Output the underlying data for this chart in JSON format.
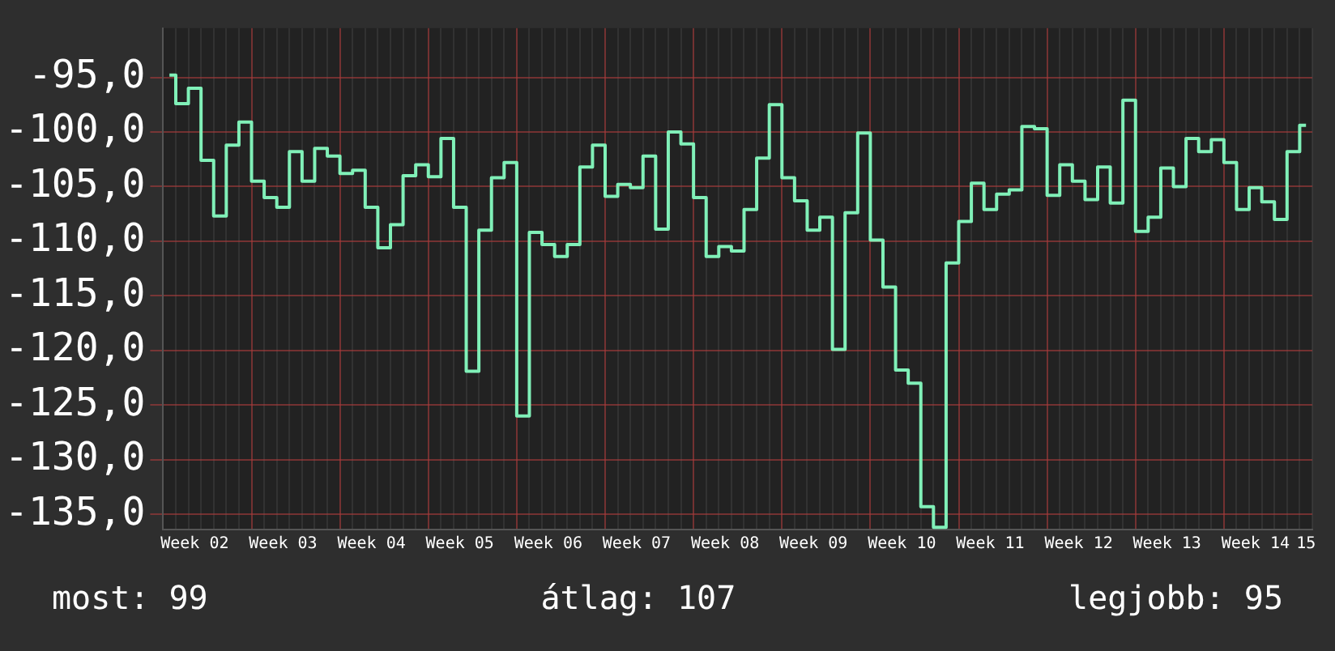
{
  "chart_data": {
    "type": "step",
    "categories": [
      null,
      null,
      "Week 02",
      null,
      null,
      null,
      null,
      null,
      null,
      "Week 03",
      null,
      null,
      null,
      null,
      null,
      null,
      "Week 04",
      null,
      null,
      null,
      null,
      null,
      null,
      "Week 05",
      null,
      null,
      null,
      null,
      null,
      null,
      "Week 06",
      null,
      null,
      null,
      null,
      null,
      null,
      "Week 07",
      null,
      null,
      null,
      null,
      null,
      null,
      "Week 08",
      null,
      null,
      null,
      null,
      null,
      null,
      "Week 09",
      null,
      null,
      null,
      null,
      null,
      null,
      "Week 10",
      null,
      null,
      null,
      null,
      null,
      null,
      "Week 11",
      null,
      null,
      null,
      null,
      null,
      null,
      "Week 12",
      null,
      null,
      null,
      null,
      null,
      null,
      "Week 13",
      null,
      null,
      null,
      null,
      null,
      null,
      "Week 14",
      null,
      null,
      null,
      "15"
    ],
    "series": [
      {
        "color": "#80f0b8",
        "values": [
          -94.8,
          -97.4,
          -96.0,
          -102.6,
          -107.7,
          -101.2,
          -99.1,
          -104.5,
          -106.0,
          -106.9,
          -101.8,
          -104.5,
          -101.5,
          -102.2,
          -103.8,
          -103.5,
          -106.9,
          -110.6,
          -108.5,
          -104.0,
          -103.0,
          -104.1,
          -100.6,
          -106.9,
          -121.9,
          -109.0,
          -104.2,
          -102.8,
          -126.0,
          -109.2,
          -110.3,
          -111.4,
          -110.3,
          -103.2,
          -101.2,
          -105.9,
          -104.8,
          -105.1,
          -102.2,
          -108.9,
          -100.0,
          -101.1,
          -106.0,
          -111.4,
          -110.5,
          -110.9,
          -107.1,
          -102.4,
          -97.5,
          -104.2,
          -106.3,
          -109.0,
          -107.8,
          -119.9,
          -107.4,
          -100.1,
          -109.9,
          -114.2,
          -121.8,
          -123.0,
          -134.3,
          -136.2,
          -112.0,
          -108.2,
          -104.7,
          -107.1,
          -105.7,
          -105.3,
          -99.5,
          -99.7,
          -105.8,
          -103.0,
          -104.5,
          -106.2,
          -103.2,
          -106.5,
          -97.1,
          -109.1,
          -107.8,
          -103.3,
          -105.0,
          -100.6,
          -101.8,
          -100.7,
          -102.8,
          -107.1,
          -105.1,
          -106.4,
          -108.0,
          -101.8,
          -99.4
        ]
      }
    ],
    "ylim": [
      -136.4,
      -90.5
    ],
    "yticks": [
      {
        "value": -95,
        "label": "-95,0"
      },
      {
        "value": -100,
        "label": "-100,0"
      },
      {
        "value": -105,
        "label": "-105,0"
      },
      {
        "value": -110,
        "label": "-110,0"
      },
      {
        "value": -115,
        "label": "-115,0"
      },
      {
        "value": -120,
        "label": "-120,0"
      },
      {
        "value": -125,
        "label": "-125,0"
      },
      {
        "value": -130,
        "label": "-130,0"
      },
      {
        "value": -135,
        "label": "-135,0"
      }
    ],
    "grid": true,
    "legend": false,
    "line_style": "solid",
    "marker": "none",
    "annotations": [
      "most: 99",
      "átlag: 107",
      "legjobb: 95"
    ]
  }
}
